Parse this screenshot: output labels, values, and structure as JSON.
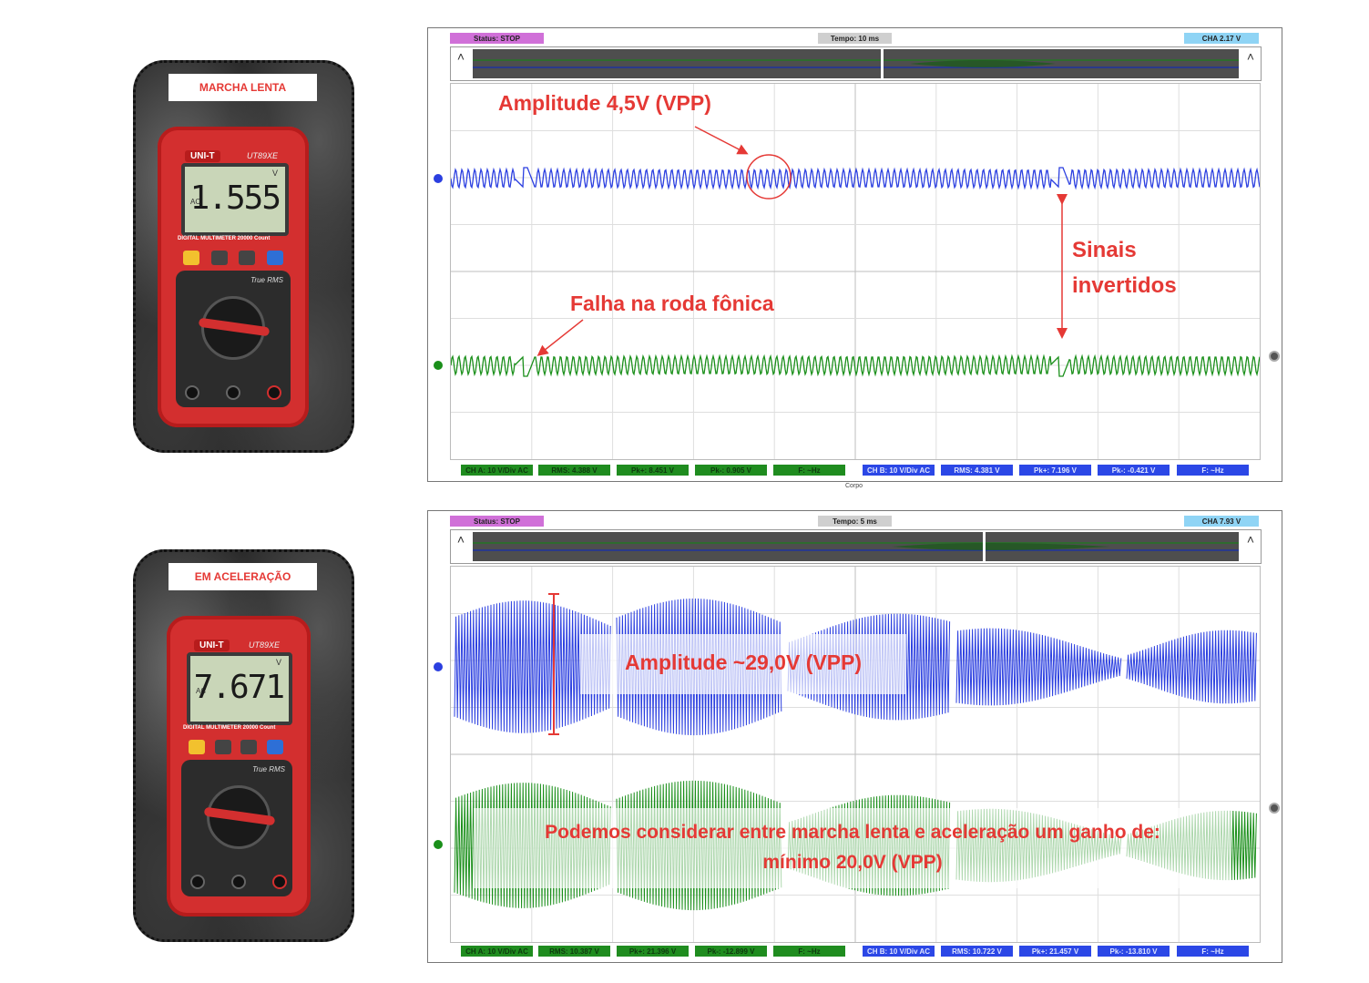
{
  "photos": [
    {
      "label": "MARCHA LENTA",
      "brand": "UNI-T",
      "model": "UT89XE",
      "reading": "1.555",
      "mode": "AC",
      "unit": "V",
      "display_strip": "DIGITAL MULTIMETER   20000 Count",
      "true_rms": "True RMS"
    },
    {
      "label": "EM ACELERAÇÃO",
      "brand": "UNI-T",
      "model": "UT89XE",
      "reading": "7.671",
      "mode": "AC",
      "unit": "V",
      "display_strip": "DIGITAL MULTIMETER   20000 Count",
      "true_rms": "True RMS"
    }
  ],
  "scopes": [
    {
      "status": "Status: STOP",
      "tempo": "Tempo: 10 ms",
      "cha": "CHA 2.17 V",
      "measures_a": [
        "CH A: 10 V/Div AC",
        "RMS: 4.388 V",
        "Pk+: 8.451 V",
        "Pk-: 0.905 V",
        "F: ~Hz"
      ],
      "measures_b": [
        "CH B: 10 V/Div AC",
        "RMS: 4.381 V",
        "Pk+: 7.196 V",
        "Pk-: -0.421 V",
        "F: ~Hz"
      ],
      "footer": "Corpo",
      "annotations": {
        "amplitude": "Amplitude 4,5V (VPP)",
        "falha": "Falha na roda fônica",
        "sinais_1": "Sinais",
        "sinais_2": "invertidos"
      }
    },
    {
      "status": "Status: STOP",
      "tempo": "Tempo: 5 ms",
      "cha": "CHA 7.93 V",
      "measures_a": [
        "CH A: 10 V/Div AC",
        "RMS: 10.387 V",
        "Pk+: 21.396 V",
        "Pk-: -12.899 V",
        "F: ~Hz"
      ],
      "measures_b": [
        "CH B: 10 V/Div AC",
        "RMS: 10.722 V",
        "Pk+: 21.457 V",
        "Pk-: -13.810 V",
        "F: ~Hz"
      ],
      "annotations": {
        "amplitude": "Amplitude ~29,0V (VPP)",
        "ganho_1": "Podemos considerar entre marcha lenta e aceleração um ganho de:",
        "ganho_2": "mínimo 20,0V (VPP)"
      }
    }
  ],
  "colors": {
    "annotation_red": "#e53935",
    "trace_blue": "#2b3fe0",
    "trace_green": "#1a8f1a",
    "status_pill": "#d070d8",
    "tempo_pill": "#cfcfcf",
    "cha_pill": "#8fd4f5"
  }
}
